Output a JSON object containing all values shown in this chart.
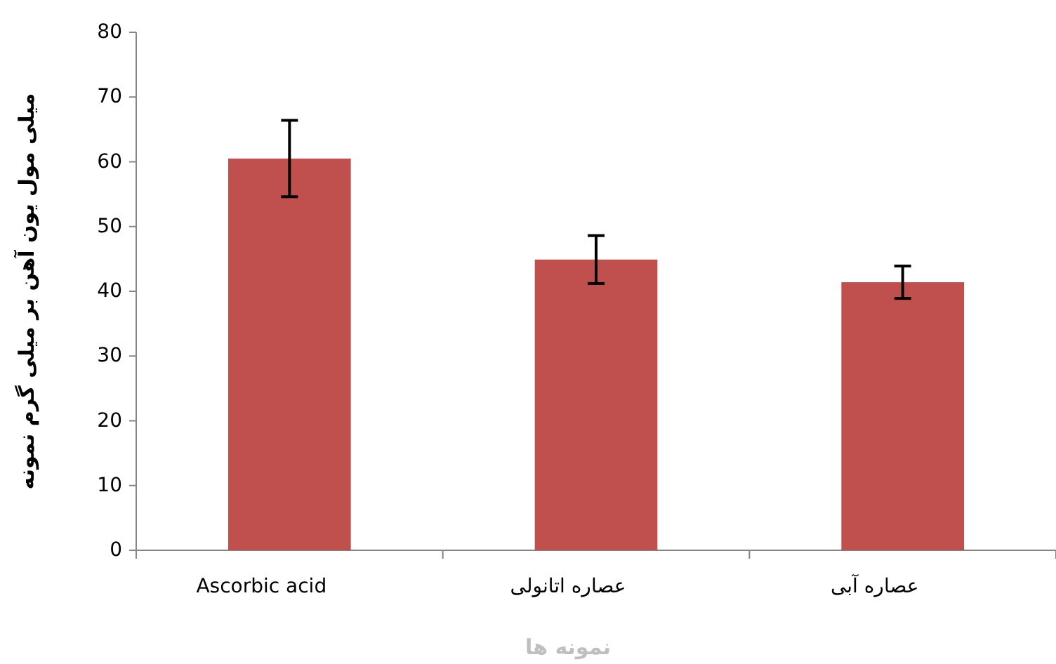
{
  "chart_data": {
    "type": "bar",
    "categories": [
      "Ascorbic acid",
      "عصاره اتانولی",
      "عصاره آبی"
    ],
    "values": [
      60.5,
      44.9,
      41.4
    ],
    "errors": [
      5.9,
      3.7,
      2.5
    ],
    "color": "#c0504d",
    "ylim": [
      0,
      80
    ],
    "yticks": [
      0,
      10,
      20,
      30,
      40,
      50,
      60,
      70,
      80
    ],
    "ylabel": "میلی مول یون آهن بر میلی گرم نمونه",
    "xlabel": "نمونه ها",
    "grid": false
  }
}
